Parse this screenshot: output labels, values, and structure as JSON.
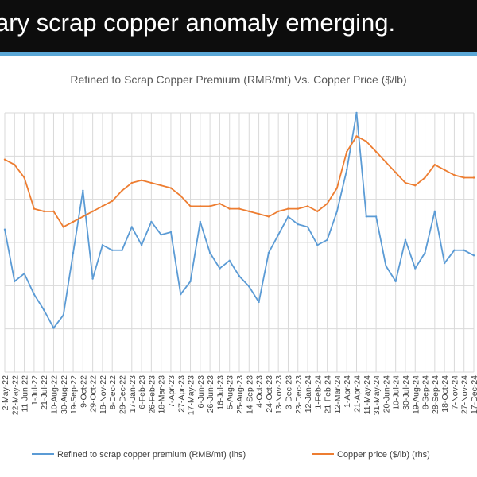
{
  "headline": "ary scrap copper anomaly emerging.",
  "colors": {
    "premium": "#5b9bd5",
    "price": "#ed7d31",
    "accent": "#5aa7d6"
  },
  "chart_data": {
    "type": "line",
    "title": "Refined to Scrap Copper Premium (RMB/mt) Vs. Copper Price ($/lb)",
    "xlabel": "",
    "ylabel": "",
    "grid": true,
    "legend_placement": "bottom",
    "x": [
      "2-May-22",
      "22-May-22",
      "11-Jun-22",
      "1-Jul-22",
      "21-Jul-22",
      "10-Aug-22",
      "30-Aug-22",
      "19-Sep-22",
      "9-Oct-22",
      "29-Oct-22",
      "18-Nov-22",
      "8-Dec-22",
      "28-Dec-22",
      "17-Jan-23",
      "6-Feb-23",
      "26-Feb-23",
      "18-Mar-23",
      "7-Apr-23",
      "27-Apr-23",
      "17-May-23",
      "6-Jun-23",
      "26-Jun-23",
      "16-Jul-23",
      "5-Aug-23",
      "25-Aug-23",
      "14-Sep-23",
      "4-Oct-23",
      "24-Oct-23",
      "13-Nov-23",
      "3-Dec-23",
      "23-Dec-23",
      "12-Jan-24",
      "1-Feb-24",
      "21-Feb-24",
      "12-Mar-24",
      "1-Apr-24",
      "21-Apr-24",
      "11-May-24",
      "31-May-24",
      "20-Jun-24",
      "10-Jul-24",
      "30-Jul-24",
      "19-Aug-24",
      "8-Sep-24",
      "28-Sep-24",
      "18-Oct-24",
      "7-Nov-24",
      "27-Nov-24",
      "17-Dec-24"
    ],
    "series": [
      {
        "name": "Refined to scrap copper premium (RMB/mt) (lhs)",
        "axis": "left",
        "values": [
          0.55,
          0.35,
          0.38,
          0.3,
          0.24,
          0.17,
          0.22,
          0.46,
          0.7,
          0.36,
          0.49,
          0.47,
          0.47,
          0.56,
          0.49,
          0.58,
          0.53,
          0.54,
          0.3,
          0.35,
          0.58,
          0.46,
          0.4,
          0.43,
          0.37,
          0.33,
          0.27,
          0.46,
          0.53,
          0.6,
          0.57,
          0.56,
          0.49,
          0.51,
          0.62,
          0.78,
          1.0,
          0.6,
          0.6,
          0.41,
          0.35,
          0.51,
          0.4,
          0.46,
          0.62,
          0.42,
          0.47,
          0.47,
          0.45
        ]
      },
      {
        "name": "Copper price ($/lb) (rhs)",
        "axis": "right",
        "values": [
          0.82,
          0.8,
          0.75,
          0.63,
          0.62,
          0.62,
          0.56,
          0.58,
          0.6,
          0.62,
          0.64,
          0.66,
          0.7,
          0.73,
          0.74,
          0.73,
          0.72,
          0.71,
          0.68,
          0.64,
          0.64,
          0.64,
          0.65,
          0.63,
          0.63,
          0.62,
          0.61,
          0.6,
          0.62,
          0.63,
          0.63,
          0.64,
          0.62,
          0.65,
          0.71,
          0.85,
          0.91,
          0.89,
          0.85,
          0.81,
          0.77,
          0.73,
          0.72,
          0.75,
          0.8,
          0.78,
          0.76,
          0.75,
          0.75
        ]
      }
    ]
  },
  "legend": [
    {
      "label": "Refined to scrap copper premium (RMB/mt) (lhs)"
    },
    {
      "label": "Copper price ($/lb) (rhs)"
    }
  ]
}
